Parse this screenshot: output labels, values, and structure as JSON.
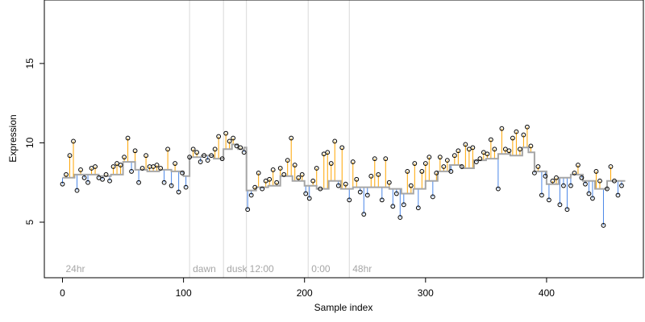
{
  "chart_data": {
    "type": "scatter",
    "title": "",
    "xlabel": "Sample index",
    "ylabel": "Expression",
    "xlim": [
      -15,
      480
    ],
    "ylim": [
      1.5,
      19
    ],
    "x_ticks": [
      0,
      100,
      200,
      300,
      400
    ],
    "y_ticks": [
      5,
      10,
      15
    ],
    "grid": false,
    "legend": "none",
    "colors": {
      "points_stroke": "#000000",
      "above_fit": "#FFA500",
      "below_fit": "#4A86E8",
      "fit_line": "#A6A6A6",
      "segment_line": "#D9D9D9",
      "segment_text": "#A6A6A6"
    },
    "segments": [
      {
        "label": "24hr",
        "x": 0
      },
      {
        "label": "dawn",
        "x": 105
      },
      {
        "label": "dusk",
        "x": 133
      },
      {
        "label": "12:00",
        "x": 152
      },
      {
        "label": "0:00",
        "x": 203
      },
      {
        "label": "48hr",
        "x": 237
      }
    ],
    "fit_series": {
      "name": "",
      "x": [
        0,
        10,
        20,
        30,
        40,
        50,
        60,
        70,
        80,
        90,
        100,
        105,
        115,
        125,
        133,
        140,
        145,
        150,
        152,
        160,
        170,
        180,
        190,
        200,
        210,
        220,
        230,
        240,
        250,
        260,
        270,
        280,
        290,
        300,
        310,
        320,
        330,
        340,
        350,
        360,
        370,
        380,
        385,
        390,
        400,
        410,
        420,
        430,
        440,
        450,
        460
      ],
      "y": [
        7.8,
        8.0,
        8.0,
        7.9,
        8.0,
        8.8,
        8.3,
        8.2,
        8.3,
        8.2,
        7.9,
        9.1,
        9.2,
        9.0,
        9.6,
        9.9,
        9.6,
        9.7,
        7.0,
        7.2,
        7.3,
        7.9,
        7.6,
        7.3,
        7.1,
        7.6,
        7.1,
        7.2,
        7.2,
        7.2,
        7.1,
        6.8,
        7.1,
        7.6,
        8.2,
        8.6,
        8.4,
        8.9,
        9.0,
        9.3,
        9.2,
        9.7,
        9.4,
        8.2,
        7.4,
        7.8,
        8.0,
        7.6,
        7.1,
        7.6,
        7.6
      ]
    },
    "points": {
      "name": "",
      "x": [
        0,
        3,
        6,
        9,
        12,
        15,
        18,
        21,
        24,
        27,
        30,
        33,
        36,
        39,
        42,
        45,
        48,
        51,
        54,
        57,
        60,
        63,
        66,
        69,
        72,
        75,
        78,
        81,
        84,
        87,
        90,
        93,
        96,
        99,
        102,
        105,
        108,
        111,
        114,
        117,
        120,
        123,
        126,
        129,
        132,
        135,
        138,
        141,
        144,
        147,
        150,
        153,
        156,
        159,
        162,
        165,
        168,
        171,
        174,
        177,
        180,
        183,
        186,
        189,
        192,
        195,
        198,
        201,
        204,
        207,
        210,
        213,
        216,
        219,
        222,
        225,
        228,
        231,
        234,
        237,
        240,
        243,
        246,
        249,
        252,
        255,
        258,
        261,
        264,
        267,
        270,
        273,
        276,
        279,
        282,
        285,
        288,
        291,
        294,
        297,
        300,
        303,
        306,
        309,
        312,
        315,
        318,
        321,
        324,
        327,
        330,
        333,
        336,
        339,
        342,
        345,
        348,
        351,
        354,
        357,
        360,
        363,
        366,
        369,
        372,
        375,
        378,
        381,
        384,
        387,
        390,
        393,
        396,
        399,
        402,
        405,
        408,
        411,
        414,
        417,
        420,
        423,
        426,
        429,
        432,
        435,
        438,
        441,
        444,
        447,
        450,
        453,
        456,
        459,
        462
      ],
      "y": [
        7.4,
        8.0,
        9.2,
        10.1,
        7.0,
        8.3,
        7.8,
        7.5,
        8.4,
        8.5,
        7.8,
        7.7,
        8.0,
        7.6,
        8.5,
        8.7,
        8.6,
        9.1,
        10.3,
        8.2,
        9.5,
        7.5,
        8.4,
        9.2,
        8.5,
        8.5,
        8.6,
        8.4,
        7.5,
        9.6,
        7.3,
        8.7,
        6.9,
        8.1,
        7.2,
        9.1,
        9.6,
        9.4,
        8.8,
        9.2,
        8.9,
        9.2,
        9.6,
        10.4,
        9.0,
        10.6,
        10.1,
        10.3,
        9.8,
        9.7,
        9.4,
        5.8,
        6.7,
        7.2,
        8.1,
        7.1,
        7.6,
        7.7,
        8.3,
        7.5,
        8.4,
        8.0,
        8.9,
        10.3,
        8.6,
        7.8,
        8.0,
        6.8,
        6.5,
        7.6,
        8.4,
        7.1,
        9.3,
        9.4,
        8.7,
        10.1,
        7.3,
        9.7,
        7.4,
        6.4,
        8.8,
        7.7,
        6.9,
        5.5,
        6.7,
        7.9,
        9.0,
        8.0,
        6.4,
        9.0,
        7.5,
        6.0,
        6.8,
        5.3,
        6.1,
        8.2,
        7.3,
        8.7,
        5.9,
        8.2,
        8.7,
        9.1,
        6.6,
        8.1,
        9.1,
        8.5,
        8.9,
        8.2,
        9.2,
        9.5,
        8.5,
        9.9,
        9.6,
        9.7,
        8.8,
        9.0,
        9.4,
        9.3,
        10.2,
        9.6,
        7.1,
        10.9,
        9.6,
        9.5,
        10.3,
        10.7,
        9.6,
        10.5,
        11.0,
        9.8,
        8.1,
        8.5,
        6.7,
        7.9,
        6.4,
        7.6,
        7.8,
        6.1,
        7.3,
        5.8,
        7.3,
        8.1,
        8.6,
        7.8,
        7.4,
        6.8,
        6.5,
        8.2,
        7.6,
        4.8,
        7.1,
        8.5,
        7.6,
        6.7,
        7.3
      ]
    }
  }
}
